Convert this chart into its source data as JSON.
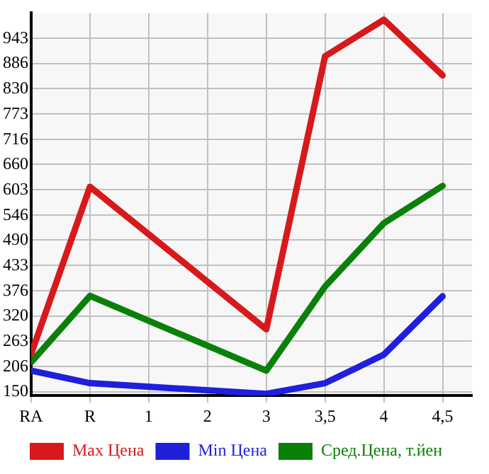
{
  "chart_data": {
    "type": "line",
    "categories": [
      "RA",
      "R",
      "1",
      "2",
      "3",
      "3,5",
      "4",
      "4,5"
    ],
    "series": [
      {
        "name": "Max Цена",
        "color": "#d7191c",
        "values": [
          235,
          610,
          null,
          null,
          290,
          903,
          985,
          860
        ]
      },
      {
        "name": "Min Цена",
        "color": "#1f1fdc",
        "values": [
          197,
          169,
          null,
          null,
          145,
          169,
          233,
          364
        ]
      },
      {
        "name": "Сред.Цена, т.йен",
        "color": "#0a800a",
        "values": [
          216,
          365,
          null,
          null,
          197,
          386,
          528,
          612
        ]
      }
    ],
    "ylim": [
      141,
      1000
    ],
    "yticks": [
      150,
      206,
      263,
      320,
      376,
      433,
      490,
      546,
      603,
      660,
      716,
      773,
      830,
      886,
      943
    ],
    "grid": true,
    "legend": "bottom",
    "marker": "none",
    "line_style": "solid"
  }
}
